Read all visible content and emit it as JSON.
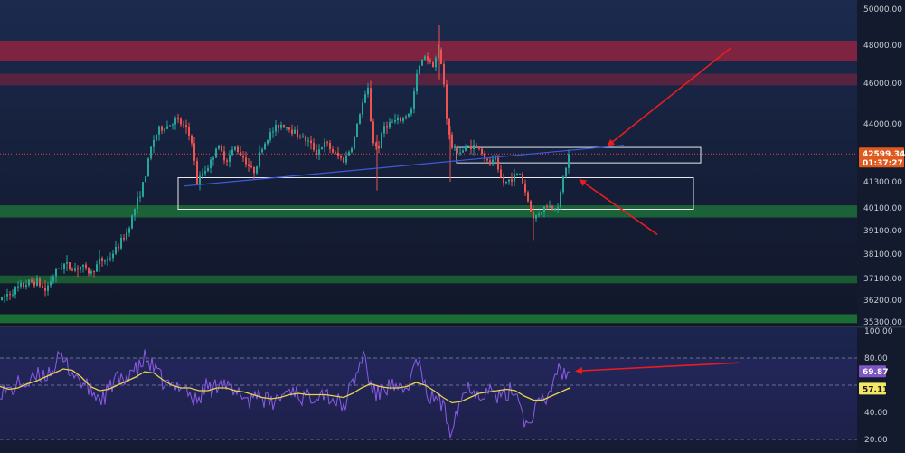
{
  "chart_data": [
    {
      "type": "candlestick",
      "title": "",
      "y_ticks": [
        50000,
        48000,
        46000,
        44000,
        41300,
        40100,
        39100,
        38100,
        37100,
        36200,
        35300
      ],
      "y_tick_labels": [
        "50000.00",
        "48000.00",
        "46000.00",
        "44000.00",
        "41300.00",
        "40100.00",
        "39100.00",
        "38100.00",
        "37100.00",
        "36200.00",
        "35300.00"
      ],
      "last_price": 42599.34,
      "last_price_label": "42599.34",
      "countdown_label": "01:37:27",
      "price_path": [
        [
          0,
          36200
        ],
        [
          10,
          36500
        ],
        [
          20,
          36700
        ],
        [
          30,
          36900
        ],
        [
          40,
          37000
        ],
        [
          50,
          36600
        ],
        [
          60,
          37300
        ],
        [
          70,
          37700
        ],
        [
          80,
          37500
        ],
        [
          90,
          37600
        ],
        [
          100,
          37300
        ],
        [
          110,
          37800
        ],
        [
          120,
          37900
        ],
        [
          130,
          38400
        ],
        [
          140,
          39000
        ],
        [
          150,
          40200
        ],
        [
          160,
          41400
        ],
        [
          168,
          43100
        ],
        [
          175,
          43700
        ],
        [
          185,
          43900
        ],
        [
          195,
          44200
        ],
        [
          205,
          43800
        ],
        [
          212,
          43200
        ],
        [
          218,
          41200
        ],
        [
          225,
          41800
        ],
        [
          232,
          42100
        ],
        [
          240,
          43000
        ],
        [
          250,
          42300
        ],
        [
          260,
          42900
        ],
        [
          270,
          42400
        ],
        [
          280,
          41700
        ],
        [
          290,
          42900
        ],
        [
          300,
          43600
        ],
        [
          310,
          44000
        ],
        [
          320,
          43800
        ],
        [
          330,
          43500
        ],
        [
          340,
          43200
        ],
        [
          350,
          42700
        ],
        [
          360,
          43100
        ],
        [
          370,
          42600
        ],
        [
          380,
          42300
        ],
        [
          390,
          43000
        ],
        [
          400,
          44900
        ],
        [
          407,
          45700
        ],
        [
          412,
          43200
        ],
        [
          418,
          42800
        ],
        [
          425,
          43900
        ],
        [
          435,
          44100
        ],
        [
          445,
          44200
        ],
        [
          455,
          44700
        ],
        [
          462,
          46700
        ],
        [
          470,
          47500
        ],
        [
          478,
          46900
        ],
        [
          485,
          47700
        ],
        [
          490,
          46500
        ],
        [
          495,
          43800
        ],
        [
          500,
          42900
        ],
        [
          510,
          42700
        ],
        [
          520,
          43000
        ],
        [
          530,
          42900
        ],
        [
          540,
          42100
        ],
        [
          548,
          42300
        ],
        [
          552,
          41600
        ],
        [
          558,
          41200
        ],
        [
          566,
          41500
        ],
        [
          575,
          41700
        ],
        [
          582,
          40700
        ],
        [
          590,
          39600
        ],
        [
          596,
          39900
        ],
        [
          604,
          40200
        ],
        [
          612,
          40100
        ],
        [
          618,
          40300
        ],
        [
          624,
          41700
        ],
        [
          630,
          42600
        ]
      ],
      "zones": [
        {
          "kind": "supply",
          "low": 47150,
          "high": 48250,
          "color": "#a0243f",
          "x_end": "edge"
        },
        {
          "kind": "supply",
          "low": 45900,
          "high": 46500,
          "color": "#6e2340",
          "x_end": "edge"
        },
        {
          "kind": "demand",
          "low": 39680,
          "high": 40220,
          "color": "#1d7a3a",
          "x_end": "edge"
        },
        {
          "kind": "demand",
          "low": 36900,
          "high": 37220,
          "color": "#1d6f34",
          "x_end": "edge"
        },
        {
          "kind": "demand",
          "low": 35250,
          "high": 35620,
          "color": "#1f8a3a",
          "x_end": "edge"
        }
      ],
      "rectangles": [
        {
          "x_start": 505,
          "x_end": 775,
          "low": 42180,
          "high": 42900
        },
        {
          "x_start": 197,
          "x_end": 767,
          "low": 40040,
          "high": 41490
        }
      ],
      "trendline": {
        "x1": 203,
        "y1": 41100,
        "x2": 690,
        "y2": 43000
      },
      "price_line_color": "#e04848",
      "arrows": [
        {
          "from": [
            809,
            47880
          ],
          "to": [
            673,
            43010
          ]
        },
        {
          "from": [
            727,
            38930
          ],
          "to": [
            642,
            41370
          ]
        }
      ]
    },
    {
      "type": "line",
      "title": "",
      "y_ticks": [
        100,
        80,
        40,
        20
      ],
      "y_tick_labels": [
        "100.00",
        "80.00",
        "40.00",
        "20.00"
      ],
      "band_upper": 80,
      "band_lower": 20,
      "mid_level": 60,
      "rsi_value": 69.87,
      "rsi_label": "69.87",
      "ma_value": 57.11,
      "ma_label": "57.11",
      "rsi_color": "#8a5ce6",
      "ma_color": "#e8d44d",
      "arrow": {
        "from": [
          817,
          76.5
        ],
        "to": [
          638,
          70.5
        ]
      },
      "rsi_path": [
        [
          0,
          57
        ],
        [
          8,
          55
        ],
        [
          16,
          58
        ],
        [
          24,
          63
        ],
        [
          32,
          60
        ],
        [
          40,
          66
        ],
        [
          50,
          68
        ],
        [
          58,
          72
        ],
        [
          66,
          80
        ],
        [
          72,
          76
        ],
        [
          80,
          70
        ],
        [
          88,
          64
        ],
        [
          96,
          58
        ],
        [
          104,
          54
        ],
        [
          112,
          50
        ],
        [
          120,
          55
        ],
        [
          128,
          66
        ],
        [
          136,
          60
        ],
        [
          144,
          72
        ],
        [
          152,
          70
        ],
        [
          160,
          80
        ],
        [
          168,
          74
        ],
        [
          176,
          66
        ],
        [
          184,
          60
        ],
        [
          192,
          58
        ],
        [
          200,
          62
        ],
        [
          208,
          56
        ],
        [
          214,
          48
        ],
        [
          220,
          50
        ],
        [
          228,
          60
        ],
        [
          236,
          56
        ],
        [
          244,
          66
        ],
        [
          252,
          58
        ],
        [
          260,
          52
        ],
        [
          268,
          54
        ],
        [
          276,
          48
        ],
        [
          284,
          56
        ],
        [
          292,
          50
        ],
        [
          300,
          46
        ],
        [
          308,
          50
        ],
        [
          316,
          55
        ],
        [
          324,
          58
        ],
        [
          332,
          52
        ],
        [
          340,
          50
        ],
        [
          348,
          54
        ],
        [
          356,
          56
        ],
        [
          364,
          52
        ],
        [
          372,
          48
        ],
        [
          380,
          44
        ],
        [
          388,
          58
        ],
        [
          396,
          70
        ],
        [
          402,
          85
        ],
        [
          408,
          64
        ],
        [
          416,
          52
        ],
        [
          424,
          58
        ],
        [
          432,
          60
        ],
        [
          440,
          54
        ],
        [
          448,
          56
        ],
        [
          456,
          68
        ],
        [
          462,
          80
        ],
        [
          468,
          60
        ],
        [
          476,
          50
        ],
        [
          484,
          52
        ],
        [
          492,
          40
        ],
        [
          498,
          28
        ],
        [
          506,
          44
        ],
        [
          514,
          56
        ],
        [
          522,
          60
        ],
        [
          530,
          52
        ],
        [
          538,
          58
        ],
        [
          546,
          54
        ],
        [
          554,
          50
        ],
        [
          562,
          54
        ],
        [
          570,
          58
        ],
        [
          578,
          40
        ],
        [
          584,
          28
        ],
        [
          590,
          42
        ],
        [
          598,
          46
        ],
        [
          606,
          50
        ],
        [
          612,
          64
        ],
        [
          618,
          74
        ],
        [
          624,
          68
        ],
        [
          630,
          70
        ]
      ],
      "ma_path": [
        [
          0,
          59
        ],
        [
          10,
          57
        ],
        [
          20,
          58
        ],
        [
          30,
          61
        ],
        [
          40,
          63
        ],
        [
          50,
          66
        ],
        [
          60,
          69
        ],
        [
          70,
          72
        ],
        [
          80,
          71
        ],
        [
          90,
          66
        ],
        [
          100,
          59
        ],
        [
          110,
          56
        ],
        [
          120,
          57
        ],
        [
          130,
          60
        ],
        [
          140,
          63
        ],
        [
          150,
          66
        ],
        [
          160,
          70
        ],
        [
          170,
          69
        ],
        [
          180,
          64
        ],
        [
          190,
          60
        ],
        [
          200,
          58
        ],
        [
          210,
          58
        ],
        [
          220,
          56
        ],
        [
          230,
          56
        ],
        [
          240,
          58
        ],
        [
          250,
          58
        ],
        [
          260,
          56
        ],
        [
          270,
          55
        ],
        [
          280,
          53
        ],
        [
          290,
          51
        ],
        [
          300,
          50
        ],
        [
          310,
          51
        ],
        [
          320,
          53
        ],
        [
          330,
          54
        ],
        [
          340,
          53
        ],
        [
          350,
          53
        ],
        [
          360,
          53
        ],
        [
          370,
          52
        ],
        [
          380,
          51
        ],
        [
          390,
          54
        ],
        [
          400,
          58
        ],
        [
          410,
          61
        ],
        [
          420,
          59
        ],
        [
          430,
          58
        ],
        [
          440,
          58
        ],
        [
          450,
          59
        ],
        [
          460,
          62
        ],
        [
          470,
          60
        ],
        [
          480,
          56
        ],
        [
          490,
          51
        ],
        [
          500,
          47
        ],
        [
          510,
          48
        ],
        [
          520,
          51
        ],
        [
          530,
          54
        ],
        [
          540,
          55
        ],
        [
          550,
          56
        ],
        [
          560,
          57
        ],
        [
          570,
          56
        ],
        [
          580,
          52
        ],
        [
          590,
          49
        ],
        [
          600,
          49
        ],
        [
          610,
          52
        ],
        [
          620,
          55
        ],
        [
          630,
          58
        ]
      ]
    }
  ],
  "colors": {
    "background": "#131a2e",
    "up": "#26a69a",
    "down": "#ef5350",
    "axis_bg": "#131a2e",
    "price_tag": "#e05a1f",
    "rsi_tag": "#7e57c2",
    "ma_tag": "#f5e663"
  }
}
